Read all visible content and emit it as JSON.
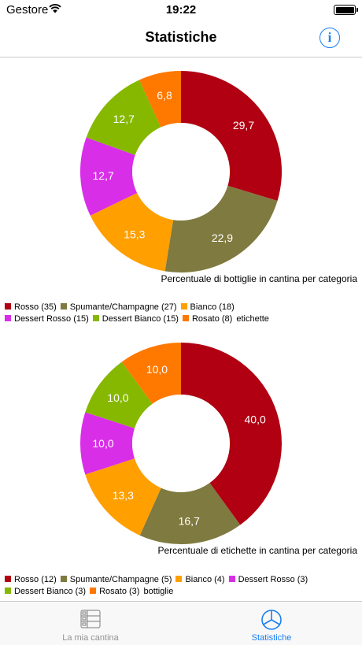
{
  "status_bar": {
    "carrier": "Gestore",
    "time": "19:22"
  },
  "nav": {
    "title": "Statistiche",
    "info_icon": "info-icon"
  },
  "colors": {
    "rosso": "#b00012",
    "spumante": "#7f7a3f",
    "bianco": "#ff9f00",
    "dessert_rosso": "#d92ee8",
    "dessert_bianco": "#86b800",
    "rosato": "#ff7800",
    "accent": "#1a7ff0"
  },
  "chart_data": [
    {
      "type": "pie",
      "variant": "donut",
      "title": "Percentuale di bottiglie in cantina per categoria",
      "slices": [
        {
          "label": "29,7",
          "value": 29.7,
          "color": "#b00012"
        },
        {
          "label": "22,9",
          "value": 22.9,
          "color": "#7f7a3f"
        },
        {
          "label": "15,3",
          "value": 15.3,
          "color": "#ff9f00"
        },
        {
          "label": "12,7",
          "value": 12.7,
          "color": "#d92ee8"
        },
        {
          "label": "12,7",
          "value": 12.7,
          "color": "#86b800"
        },
        {
          "label": "6,8",
          "value": 6.8,
          "color": "#ff7800"
        }
      ],
      "legend": [
        [
          "Rosso (35)",
          "Spumante/Champagne (27)",
          "Bianco (18)"
        ],
        [
          "Dessert Rosso (15)",
          "Dessert Bianco (15)",
          "Rosato (8)"
        ]
      ],
      "legend_suffix": "etichette"
    },
    {
      "type": "pie",
      "variant": "donut",
      "title": "Percentuale di etichette in cantina per categoria",
      "slices": [
        {
          "label": "40,0",
          "value": 40.0,
          "color": "#b00012"
        },
        {
          "label": "16,7",
          "value": 16.7,
          "color": "#7f7a3f"
        },
        {
          "label": "13,3",
          "value": 13.3,
          "color": "#ff9f00"
        },
        {
          "label": "10,0",
          "value": 10.0,
          "color": "#d92ee8"
        },
        {
          "label": "10,0",
          "value": 10.0,
          "color": "#86b800"
        },
        {
          "label": "10,0",
          "value": 10.0,
          "color": "#ff7800"
        }
      ],
      "legend": [
        [
          "Rosso (12)",
          "Spumante/Champagne (5)",
          "Bianco (4)",
          "Dessert Rosso (3)"
        ],
        [
          "Dessert Bianco (3)",
          "Rosato (3)"
        ]
      ],
      "legend_suffix": "bottiglie"
    }
  ],
  "tab_bar": {
    "tabs": [
      {
        "label": "La mia cantina",
        "icon": "cellar-icon",
        "selected": false
      },
      {
        "label": "Statistiche",
        "icon": "pie-chart-icon",
        "selected": true
      }
    ]
  }
}
